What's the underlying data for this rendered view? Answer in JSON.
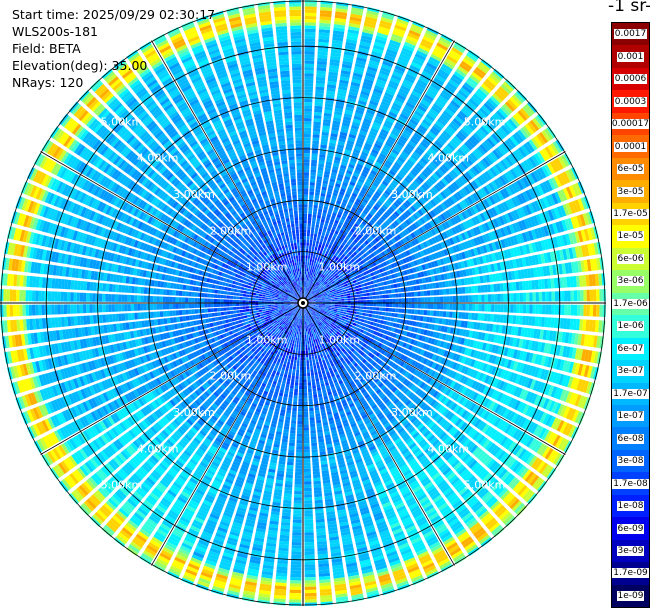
{
  "header": {
    "start_time": "Start time: 2025/09/29 02:30:17",
    "instrument": "WLS200s-181",
    "field": "Field: BETA",
    "elevation": "Elevation(deg): 35.00",
    "nrays": "NRays: 120"
  },
  "colorbar": {
    "unit_title": "-1 sr-",
    "ticks": [
      "0.0017",
      "0.001",
      "0.0006",
      "0.0003",
      "0.00017",
      "0.0001",
      "6e-05",
      "3e-05",
      "1.7e-05",
      "1e-05",
      "6e-06",
      "3e-06",
      "1.7e-06",
      "1e-06",
      "6e-07",
      "3e-07",
      "1.7e-07",
      "1e-07",
      "6e-08",
      "3e-08",
      "1.7e-08",
      "1e-08",
      "6e-09",
      "3e-09",
      "1.7e-09",
      "1e-09"
    ],
    "colors": [
      "#8b0000",
      "#b00000",
      "#d60000",
      "#ff1800",
      "#ff4500",
      "#ff6a00",
      "#ff8c00",
      "#ffae00",
      "#ffd200",
      "#ffff00",
      "#ccff33",
      "#99ff66",
      "#66ffaa",
      "#33ffdd",
      "#00f0ff",
      "#00d4ff",
      "#00b8ff",
      "#009cff",
      "#0080ff",
      "#0064ff",
      "#0040ff",
      "#0020ff",
      "#0000ee",
      "#0000c0",
      "#000090",
      "#000060"
    ]
  },
  "chart_data": {
    "type": "heatmap",
    "projection": "polar",
    "field": "BETA",
    "nrays": 120,
    "elevation_deg": 35.0,
    "range_rings_km": [
      1.0,
      2.0,
      3.0,
      4.0,
      5.0
    ],
    "range_ring_labels": [
      "1.00km",
      "2.00km",
      "3.00km",
      "4.00km",
      "5.00km"
    ],
    "max_range_km": 5.9,
    "spokes_deg": [
      0,
      30,
      60,
      90,
      120,
      150,
      180,
      210,
      240,
      270,
      300,
      330
    ],
    "color_scale": "log",
    "vmin": 1e-09,
    "vmax": 0.0017,
    "near_range_beta": 2e-08,
    "mid_range_beta": 1.2e-07,
    "far_range_beta": 3e-07,
    "edge_band_beta": 3e-05,
    "enhanced_sectors_deg": [
      [
        75,
        135
      ],
      [
        125,
        160
      ],
      [
        205,
        240
      ]
    ],
    "grid": true
  }
}
